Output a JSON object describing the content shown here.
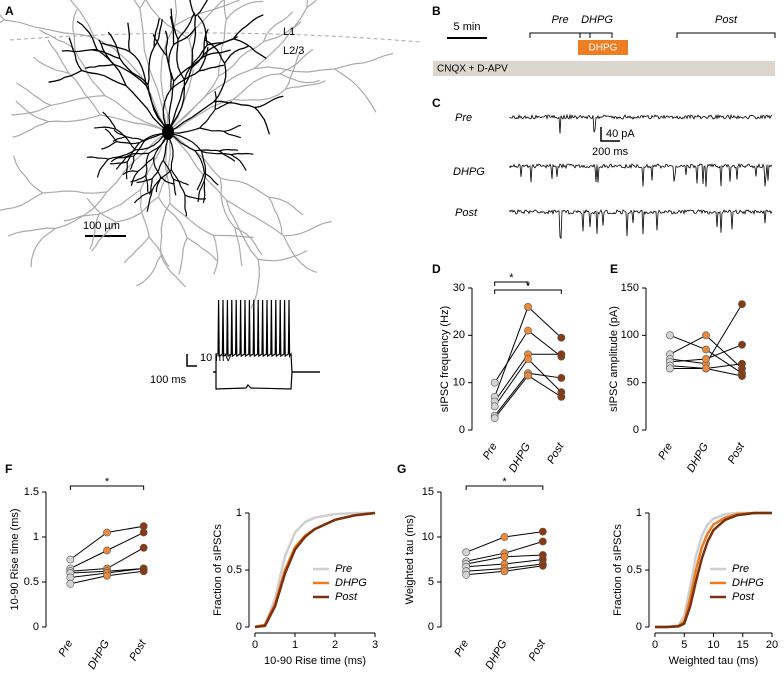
{
  "panel_labels": [
    "A",
    "B",
    "C",
    "D",
    "E",
    "F",
    "G"
  ],
  "panel_a": {
    "layer_labels": [
      "L1",
      "L2/3"
    ],
    "scale_bar": "100 µm",
    "trace_scale": {
      "voltage": "10 mV",
      "time": "100 ms"
    }
  },
  "panel_b": {
    "scale_bar": "5 min",
    "periods": [
      "Pre",
      "DHPG",
      "Post"
    ],
    "drug_box": "DHPG",
    "baseline_bar": "CNQX + D-APV"
  },
  "panel_c": {
    "conditions": [
      "Pre",
      "DHPG",
      "Post"
    ],
    "scale_bar": {
      "current": "40 pA",
      "time": "200 ms"
    }
  },
  "chart_data": [
    {
      "type": "paired",
      "y_label": "sIPSC frequency (Hz)",
      "categories": [
        "Pre",
        "DHPG",
        "Post"
      ],
      "point_colors": [
        "#d4d4d4",
        "#ec8a3c",
        "#8a3a12"
      ],
      "line_color": "#000",
      "ylim": [
        0,
        30
      ],
      "yticks": [
        0,
        10,
        20,
        30
      ],
      "brackets": [
        {
          "between": [
            "Pre",
            "DHPG"
          ],
          "label": "*"
        },
        {
          "between": [
            "Pre",
            "Post"
          ],
          "label": "*"
        }
      ],
      "series": [
        {
          "values": [
            10,
            21,
            15.5
          ]
        },
        {
          "values": [
            7,
            26,
            19.5
          ]
        },
        {
          "values": [
            6,
            16,
            16
          ]
        },
        {
          "values": [
            5,
            15,
            8
          ]
        },
        {
          "values": [
            3,
            12,
            11
          ]
        },
        {
          "values": [
            2.5,
            11.5,
            7
          ]
        }
      ]
    },
    {
      "type": "paired",
      "y_label": "sIPSC amplitude (pA)",
      "categories": [
        "Pre",
        "DHPG",
        "Post"
      ],
      "point_colors": [
        "#d4d4d4",
        "#ec8a3c",
        "#8a3a12"
      ],
      "line_color": "#000",
      "ylim": [
        0,
        150
      ],
      "yticks": [
        0,
        50,
        100,
        150
      ],
      "brackets": [],
      "series": [
        {
          "values": [
            100,
            85,
            60
          ]
        },
        {
          "values": [
            80,
            100,
            65
          ]
        },
        {
          "values": [
            75,
            70,
            133
          ]
        },
        {
          "values": [
            72,
            75,
            90
          ]
        },
        {
          "values": [
            68,
            65,
            70
          ]
        },
        {
          "values": [
            65,
            65,
            57
          ]
        }
      ]
    },
    {
      "type": "paired",
      "y_label": "10-90 Rise time (ms)",
      "categories": [
        "Pre",
        "DHPG",
        "Post"
      ],
      "point_colors": [
        "#d4d4d4",
        "#ec8a3c",
        "#8a3a12"
      ],
      "line_color": "#000",
      "ylim": [
        0,
        1.5
      ],
      "yticks": [
        0,
        0.5,
        1,
        1.5
      ],
      "brackets": [
        {
          "between": [
            "Pre",
            "Post"
          ],
          "label": "*"
        }
      ],
      "series": [
        {
          "values": [
            0.75,
            1.05,
            1.12
          ]
        },
        {
          "values": [
            0.65,
            0.85,
            1.05
          ]
        },
        {
          "values": [
            0.62,
            0.65,
            0.88
          ]
        },
        {
          "values": [
            0.6,
            0.62,
            0.65
          ]
        },
        {
          "values": [
            0.55,
            0.6,
            0.65
          ]
        },
        {
          "values": [
            0.48,
            0.57,
            0.62
          ]
        }
      ]
    },
    {
      "type": "line",
      "x_label": "10-90 Rise time (ms)",
      "y_label": "Fraction of sIPSCs",
      "legend": "lower right",
      "xlim": [
        0,
        3
      ],
      "xticks": [
        0,
        1,
        2,
        3
      ],
      "ylim": [
        0,
        1
      ],
      "yticks": [
        0,
        0.5,
        1
      ],
      "x": [
        0,
        0.25,
        0.5,
        0.75,
        1,
        1.25,
        1.5,
        2,
        2.5,
        3
      ],
      "series": [
        {
          "name": "Pre",
          "color": "#cfcfcf",
          "values": [
            0,
            0.02,
            0.25,
            0.62,
            0.83,
            0.92,
            0.96,
            0.99,
            1,
            1
          ]
        },
        {
          "name": "DHPG",
          "color": "#ec7a22",
          "values": [
            0,
            0.02,
            0.2,
            0.5,
            0.7,
            0.8,
            0.86,
            0.94,
            0.98,
            1
          ]
        },
        {
          "name": "Post",
          "color": "#7a300d",
          "values": [
            0,
            0.01,
            0.18,
            0.47,
            0.68,
            0.79,
            0.86,
            0.94,
            0.98,
            1
          ]
        }
      ]
    },
    {
      "type": "paired",
      "y_label": "Weighted tau (ms)",
      "categories": [
        "Pre",
        "DHPG",
        "Post"
      ],
      "point_colors": [
        "#d4d4d4",
        "#ec8a3c",
        "#8a3a12"
      ],
      "line_color": "#000",
      "ylim": [
        0,
        15
      ],
      "yticks": [
        0,
        5,
        10,
        15
      ],
      "brackets": [
        {
          "between": [
            "Pre",
            "Post"
          ],
          "label": "*"
        }
      ],
      "series": [
        {
          "values": [
            8.3,
            10,
            10.6
          ]
        },
        {
          "values": [
            7.3,
            8.2,
            9.5
          ]
        },
        {
          "values": [
            7,
            7.8,
            8
          ]
        },
        {
          "values": [
            6.7,
            7,
            7.5
          ]
        },
        {
          "values": [
            6.2,
            6.5,
            7
          ]
        },
        {
          "values": [
            5.8,
            6.2,
            6.8
          ]
        }
      ]
    },
    {
      "type": "line",
      "x_label": "Weighted tau (ms)",
      "y_label": "Fraction of sIPSCs",
      "legend": "lower right",
      "xlim": [
        0,
        20
      ],
      "xticks": [
        0,
        5,
        10,
        15,
        20
      ],
      "ylim": [
        0,
        1
      ],
      "yticks": [
        0,
        0.5,
        1
      ],
      "x": [
        0,
        2,
        4,
        5,
        6,
        7,
        8,
        9,
        10,
        12,
        14,
        17,
        20
      ],
      "series": [
        {
          "name": "Pre",
          "color": "#cfcfcf",
          "values": [
            0,
            0,
            0.01,
            0.1,
            0.35,
            0.62,
            0.8,
            0.9,
            0.95,
            0.99,
            1,
            1,
            1
          ]
        },
        {
          "name": "DHPG",
          "color": "#ec7a22",
          "values": [
            0,
            0,
            0.01,
            0.05,
            0.25,
            0.5,
            0.7,
            0.82,
            0.9,
            0.96,
            0.99,
            1,
            1
          ]
        },
        {
          "name": "Post",
          "color": "#7a300d",
          "values": [
            0,
            0,
            0.005,
            0.03,
            0.18,
            0.4,
            0.6,
            0.75,
            0.85,
            0.94,
            0.98,
            1,
            1
          ]
        }
      ]
    }
  ]
}
